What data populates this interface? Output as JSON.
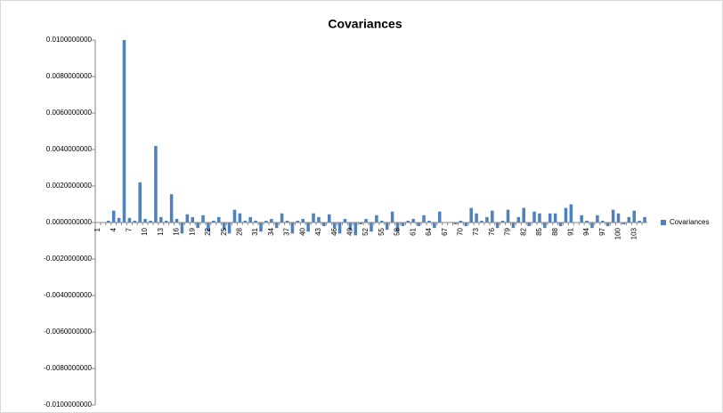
{
  "chart_data": {
    "type": "bar",
    "title": "Covariances",
    "categories": [
      "1",
      null,
      null,
      "4",
      null,
      null,
      "7",
      null,
      null,
      "10",
      null,
      null,
      "13",
      null,
      null,
      "16",
      null,
      null,
      "19",
      null,
      null,
      "22",
      null,
      null,
      "25",
      null,
      null,
      "28",
      null,
      null,
      "31",
      null,
      null,
      "34",
      null,
      null,
      "37",
      null,
      null,
      "40",
      null,
      null,
      "43",
      null,
      null,
      "46",
      null,
      null,
      "49",
      null,
      null,
      "52",
      null,
      null,
      "55",
      null,
      null,
      "58",
      null,
      null,
      "61",
      null,
      null,
      "64",
      null,
      null,
      "67",
      null,
      null,
      "70",
      null,
      null,
      "73",
      null,
      null,
      "76",
      null,
      null,
      "79",
      null,
      null,
      "82",
      null,
      null,
      "85",
      null,
      null,
      "88",
      null,
      null,
      "91",
      null,
      null,
      "94",
      null,
      null,
      "97",
      null,
      null,
      "100",
      null,
      null,
      "103",
      null,
      null
    ],
    "series": [
      {
        "name": "Covariances",
        "color": "#4f81bd",
        "values": [
          0,
          0,
          0.0001,
          0.00065,
          0.00025,
          0.01,
          0.00025,
          0.0001,
          0.0022,
          0.0002,
          0.0001,
          0.0042,
          0.0003,
          0.0001,
          0.00155,
          0.0002,
          -0.0006,
          0.00045,
          0.0003,
          -0.0003,
          0.0004,
          -0.0005,
          0.0001,
          0.0003,
          -0.0004,
          -0.0006,
          0.0007,
          0.0005,
          0.0001,
          0.0003,
          0.0001,
          -0.0005,
          0.0001,
          0.0002,
          -0.0003,
          0.0005,
          0.0001,
          -0.0006,
          0.0001,
          0.0002,
          -0.0005,
          0.0005,
          0.0003,
          -0.0002,
          0.00045,
          -0.0003,
          -0.0006,
          0.0002,
          -0.0004,
          -0.0007,
          -0.0001,
          0.0002,
          -0.0005,
          0.0004,
          0.0001,
          -0.0004,
          0.0006,
          -0.0005,
          -0.0002,
          0.0001,
          0.0002,
          -0.0002,
          0.0004,
          0.0001,
          -0.0003,
          0.0006,
          0,
          0,
          -0.0001,
          0.0001,
          -0.0002,
          0.0008,
          0.0005,
          0.0001,
          0.0003,
          0.00065,
          -0.0003,
          0.0001,
          0.0007,
          -0.0003,
          0.0003,
          0.0008,
          -0.0002,
          0.0006,
          0.0005,
          -0.0003,
          0.0005,
          0.0005,
          -0.0002,
          0.0008,
          0.001,
          0,
          0.0004,
          0.0001,
          -0.0003,
          0.0004,
          0.0001,
          -0.0002,
          0.0007,
          0.0005,
          -0.0001,
          0.0003,
          0.00065,
          0.0001,
          0.0003
        ]
      }
    ],
    "ylim": [
      -0.01,
      0.01
    ],
    "yticks": [
      {
        "value": -0.01,
        "label": "-0.0100000000"
      },
      {
        "value": -0.008,
        "label": "-0.0080000000"
      },
      {
        "value": -0.006,
        "label": "-0.0060000000"
      },
      {
        "value": -0.004,
        "label": "-0.0040000000"
      },
      {
        "value": -0.002,
        "label": "-0.0020000000"
      },
      {
        "value": 0,
        "label": "0.0000000000"
      },
      {
        "value": 0.002,
        "label": "0.0020000000"
      },
      {
        "value": 0.004,
        "label": "0.0040000000"
      },
      {
        "value": 0.006,
        "label": "0.0060000000"
      },
      {
        "value": 0.008,
        "label": "0.0080000000"
      },
      {
        "value": 0.01,
        "label": "0.0100000000"
      }
    ],
    "grid": false,
    "legend": "right"
  }
}
